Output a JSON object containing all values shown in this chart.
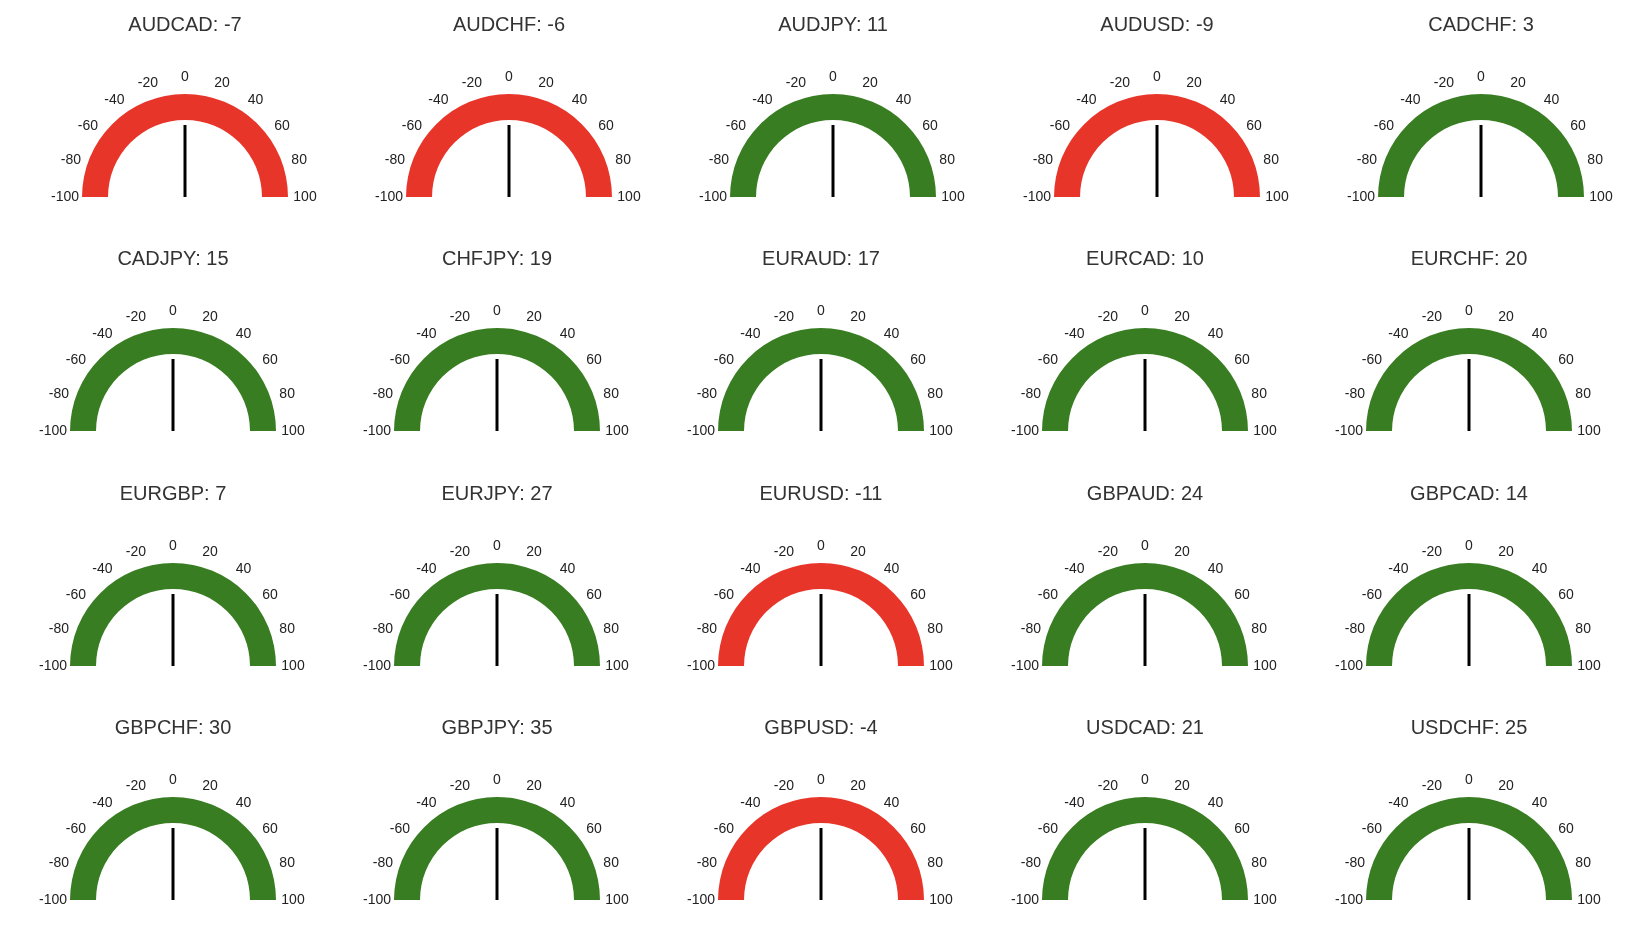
{
  "chart_data": [
    {
      "type": "pie",
      "title": "AUDCAD: -7",
      "categories": [
        null
      ],
      "values": [
        100
      ],
      "colors": [
        "#e8352a"
      ],
      "needle": null,
      "annotations": [
        "-100",
        "-80",
        "-60",
        "-40",
        "-20",
        "0",
        "20",
        "40",
        "60",
        "80",
        "100"
      ]
    },
    {
      "type": "pie",
      "title": "AUDCHF: -6",
      "categories": [
        null
      ],
      "values": [
        100
      ],
      "colors": [
        "#e8352a"
      ],
      "needle": null,
      "annotations": [
        "-100",
        "-80",
        "-60",
        "-40",
        "-20",
        "0",
        "20",
        "40",
        "60",
        "80",
        "100"
      ]
    },
    {
      "type": "pie",
      "title": "AUDJPY: 11",
      "categories": [
        null
      ],
      "values": [
        100
      ],
      "colors": [
        "#387d22"
      ],
      "needle": null,
      "annotations": [
        "-100",
        "-80",
        "-60",
        "-40",
        "-20",
        "0",
        "20",
        "40",
        "60",
        "80",
        "100"
      ]
    },
    {
      "type": "pie",
      "title": "AUDUSD: -9",
      "categories": [
        null
      ],
      "values": [
        100
      ],
      "colors": [
        "#e8352a"
      ],
      "needle": null,
      "annotations": [
        "-100",
        "-80",
        "-60",
        "-40",
        "-20",
        "0",
        "20",
        "40",
        "60",
        "80",
        "100"
      ]
    },
    {
      "type": "pie",
      "title": "CADCHF: 3",
      "categories": [
        null
      ],
      "values": [
        100
      ],
      "colors": [
        "#387d22"
      ],
      "needle": null,
      "annotations": [
        "-100",
        "-80",
        "-60",
        "-40",
        "-20",
        "0",
        "20",
        "40",
        "60",
        "80",
        "100"
      ]
    },
    {
      "type": "pie",
      "title": "CADJPY: 15",
      "categories": [
        null
      ],
      "values": [
        100
      ],
      "colors": [
        "#387d22"
      ],
      "needle": null,
      "annotations": [
        "-100",
        "-80",
        "-60",
        "-40",
        "-20",
        "0",
        "20",
        "40",
        "60",
        "80",
        "100"
      ]
    },
    {
      "type": "pie",
      "title": "CHFJPY: 19",
      "categories": [
        null
      ],
      "values": [
        100
      ],
      "colors": [
        "#387d22"
      ],
      "needle": null,
      "annotations": [
        "-100",
        "-80",
        "-60",
        "-40",
        "-20",
        "0",
        "20",
        "40",
        "60",
        "80",
        "100"
      ]
    },
    {
      "type": "pie",
      "title": "EURAUD: 17",
      "categories": [
        null
      ],
      "values": [
        100
      ],
      "colors": [
        "#387d22"
      ],
      "needle": null,
      "annotations": [
        "-100",
        "-80",
        "-60",
        "-40",
        "-20",
        "0",
        "20",
        "40",
        "60",
        "80",
        "100"
      ]
    },
    {
      "type": "pie",
      "title": "EURCAD: 10",
      "categories": [
        null
      ],
      "values": [
        100
      ],
      "colors": [
        "#387d22"
      ],
      "needle": null,
      "annotations": [
        "-100",
        "-80",
        "-60",
        "-40",
        "-20",
        "0",
        "20",
        "40",
        "60",
        "80",
        "100"
      ]
    },
    {
      "type": "pie",
      "title": "EURCHF: 20",
      "categories": [
        null
      ],
      "values": [
        100
      ],
      "colors": [
        "#387d22"
      ],
      "needle": null,
      "annotations": [
        "-100",
        "-80",
        "-60",
        "-40",
        "-20",
        "0",
        "20",
        "40",
        "60",
        "80",
        "100"
      ]
    },
    {
      "type": "pie",
      "title": "EURGBP: 7",
      "categories": [
        null
      ],
      "values": [
        100
      ],
      "colors": [
        "#387d22"
      ],
      "needle": null,
      "annotations": [
        "-100",
        "-80",
        "-60",
        "-40",
        "-20",
        "0",
        "20",
        "40",
        "60",
        "80",
        "100"
      ]
    },
    {
      "type": "pie",
      "title": "EURJPY: 27",
      "categories": [
        null
      ],
      "values": [
        100
      ],
      "colors": [
        "#387d22"
      ],
      "needle": null,
      "annotations": [
        "-100",
        "-80",
        "-60",
        "-40",
        "-20",
        "0",
        "20",
        "40",
        "60",
        "80",
        "100"
      ]
    },
    {
      "type": "pie",
      "title": "EURUSD: -11",
      "categories": [
        null
      ],
      "values": [
        100
      ],
      "colors": [
        "#e8352a"
      ],
      "needle": null,
      "annotations": [
        "-100",
        "-80",
        "-60",
        "-40",
        "-20",
        "0",
        "20",
        "40",
        "60",
        "80",
        "100"
      ]
    },
    {
      "type": "pie",
      "title": "GBPAUD: 24",
      "categories": [
        null
      ],
      "values": [
        100
      ],
      "colors": [
        "#387d22"
      ],
      "needle": null,
      "annotations": [
        "-100",
        "-80",
        "-60",
        "-40",
        "-20",
        "0",
        "20",
        "40",
        "60",
        "80",
        "100"
      ]
    },
    {
      "type": "pie",
      "title": "GBPCAD: 14",
      "categories": [
        null
      ],
      "values": [
        100
      ],
      "colors": [
        "#387d22"
      ],
      "needle": null,
      "annotations": [
        "-100",
        "-80",
        "-60",
        "-40",
        "-20",
        "0",
        "20",
        "40",
        "60",
        "80",
        "100"
      ]
    },
    {
      "type": "pie",
      "title": "GBPCHF: 30",
      "categories": [
        null
      ],
      "values": [
        100
      ],
      "colors": [
        "#387d22"
      ],
      "needle": null,
      "annotations": [
        "-100",
        "-80",
        "-60",
        "-40",
        "-20",
        "0",
        "20",
        "40",
        "60",
        "80",
        "100"
      ]
    },
    {
      "type": "pie",
      "title": "GBPJPY: 35",
      "categories": [
        null
      ],
      "values": [
        100
      ],
      "colors": [
        "#387d22"
      ],
      "needle": null,
      "annotations": [
        "-100",
        "-80",
        "-60",
        "-40",
        "-20",
        "0",
        "20",
        "40",
        "60",
        "80",
        "100"
      ]
    },
    {
      "type": "pie",
      "title": "GBPUSD: -4",
      "categories": [
        null
      ],
      "values": [
        100
      ],
      "colors": [
        "#e8352a"
      ],
      "needle": null,
      "annotations": [
        "-100",
        "-80",
        "-60",
        "-40",
        "-20",
        "0",
        "20",
        "40",
        "60",
        "80",
        "100"
      ]
    },
    {
      "type": "pie",
      "title": "USDCAD: 21",
      "categories": [
        null
      ],
      "values": [
        100
      ],
      "colors": [
        "#387d22"
      ],
      "needle": null,
      "annotations": [
        "-100",
        "-80",
        "-60",
        "-40",
        "-20",
        "0",
        "20",
        "40",
        "60",
        "80",
        "100"
      ]
    },
    {
      "type": "pie",
      "title": "USDCHF: 25",
      "categories": [
        null
      ],
      "values": [
        100
      ],
      "colors": [
        "#387d22"
      ],
      "needle": null,
      "annotations": [
        "-100",
        "-80",
        "-60",
        "-40",
        "-20",
        "0",
        "20",
        "40",
        "60",
        "80",
        "100"
      ]
    }
  ]
}
